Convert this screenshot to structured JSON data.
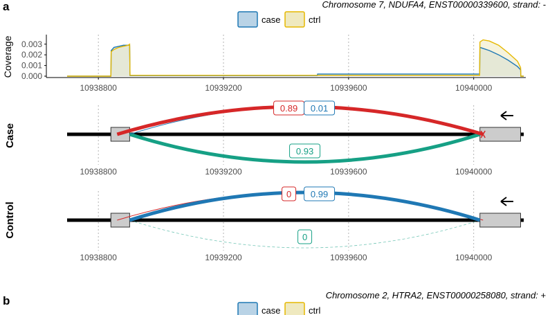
{
  "colors": {
    "case": "#1f78b4",
    "case_fill": "#b9d3e6",
    "ctrl": "#e6b800",
    "ctrl_fill": "#efe9bf",
    "inclusion": "#d62728",
    "skipping": "#16a085",
    "exon_fill": "#cccccc",
    "grid": "#b3b3b3"
  },
  "panel_a": {
    "letter": "a",
    "subtitle": "Chromosome 7, NDUFA4, ENST00000339600, strand: -",
    "legend": {
      "case_label": "case",
      "ctrl_label": "ctrl"
    },
    "direction_icon": "arrow-left-icon",
    "track_case_label": "Case",
    "track_control_label": "Control",
    "psi_case": {
      "inclusion": "0.89",
      "alt": "0.01",
      "skipping": "0.93"
    },
    "psi_control": {
      "inclusion": "0",
      "alt": "0.99",
      "skipping": "0"
    }
  },
  "panel_b": {
    "letter": "b",
    "subtitle": "Chromosome 2, HTRA2, ENST00000258080, strand: +",
    "legend": {
      "case_label": "case",
      "ctrl_label": "ctrl"
    }
  },
  "chart_data": [
    {
      "type": "area",
      "title": "Chromosome 7, NDUFA4, ENST00000339600, strand: -",
      "xlabel": "",
      "ylabel": "Coverage",
      "xlim": [
        10938700,
        10940160
      ],
      "ylim": [
        0,
        0.0037
      ],
      "x_ticks": [
        10938800,
        10939200,
        10939600,
        10940000
      ],
      "x_tick_labels": [
        "10938800",
        "10939200",
        "10939600",
        "10940000"
      ],
      "y_ticks": [
        0,
        0.001,
        0.002,
        0.003
      ],
      "y_tick_labels": [
        "0.000",
        "0.001",
        "0.002",
        "0.003"
      ],
      "grid": true,
      "legend": [
        "case",
        "ctrl"
      ],
      "series": [
        {
          "name": "case",
          "x": [
            10938700,
            10938840,
            10938841,
            10938850,
            10938865,
            10938880,
            10938895,
            10938900,
            10938901,
            10939500,
            10939501,
            10940019,
            10940020,
            10940030,
            10940050,
            10940080,
            10940110,
            10940140,
            10940150,
            10940151,
            10940160
          ],
          "y": [
            0,
            0,
            0.0024,
            0.0027,
            0.0028,
            0.0029,
            0.0029,
            0.0029,
            5e-05,
            5e-05,
            0.0002,
            0.0002,
            0.0027,
            0.0026,
            0.0024,
            0.002,
            0.0015,
            0.0009,
            0.0006,
            0,
            0
          ]
        },
        {
          "name": "ctrl",
          "x": [
            10938700,
            10938840,
            10938841,
            10938850,
            10938865,
            10938880,
            10938895,
            10938900,
            10938901,
            10940019,
            10940020,
            10940030,
            10940050,
            10940080,
            10940110,
            10940140,
            10940150,
            10940151,
            10940160
          ],
          "y": [
            0,
            0,
            0.0023,
            0.0025,
            0.0027,
            0.0028,
            0.0029,
            0.003,
            8e-05,
            8e-05,
            0.0032,
            0.0034,
            0.0033,
            0.0029,
            0.0022,
            0.0014,
            0.0008,
            0,
            0
          ]
        }
      ]
    },
    {
      "type": "sashimi",
      "track": "Case",
      "xlim": [
        10938700,
        10940160
      ],
      "x_tick_labels": [
        "10938800",
        "10939200",
        "10939600",
        "10940000"
      ],
      "exons": [
        [
          10938840,
          10938900
        ],
        [
          10940020,
          10940150
        ]
      ],
      "junctions": [
        {
          "name": "inclusion",
          "from": 10938860,
          "to": 10940030,
          "psi": 0.89,
          "direction": "up"
        },
        {
          "name": "alt",
          "from": 10938900,
          "to": 10940020,
          "psi": 0.01,
          "direction": "up"
        },
        {
          "name": "skipping",
          "from": 10938900,
          "to": 10940020,
          "psi": 0.93,
          "direction": "down"
        }
      ]
    },
    {
      "type": "sashimi",
      "track": "Control",
      "xlim": [
        10938700,
        10940160
      ],
      "x_tick_labels": [
        "10938800",
        "10939200",
        "10939600",
        "10940000"
      ],
      "exons": [
        [
          10938840,
          10938900
        ],
        [
          10940020,
          10940150
        ]
      ],
      "junctions": [
        {
          "name": "inclusion",
          "from": 10938860,
          "to": 10940030,
          "psi": 0,
          "direction": "up"
        },
        {
          "name": "alt",
          "from": 10938900,
          "to": 10940020,
          "psi": 0.99,
          "direction": "up"
        },
        {
          "name": "skipping",
          "from": 10938900,
          "to": 10940020,
          "psi": 0,
          "direction": "down"
        }
      ]
    }
  ]
}
